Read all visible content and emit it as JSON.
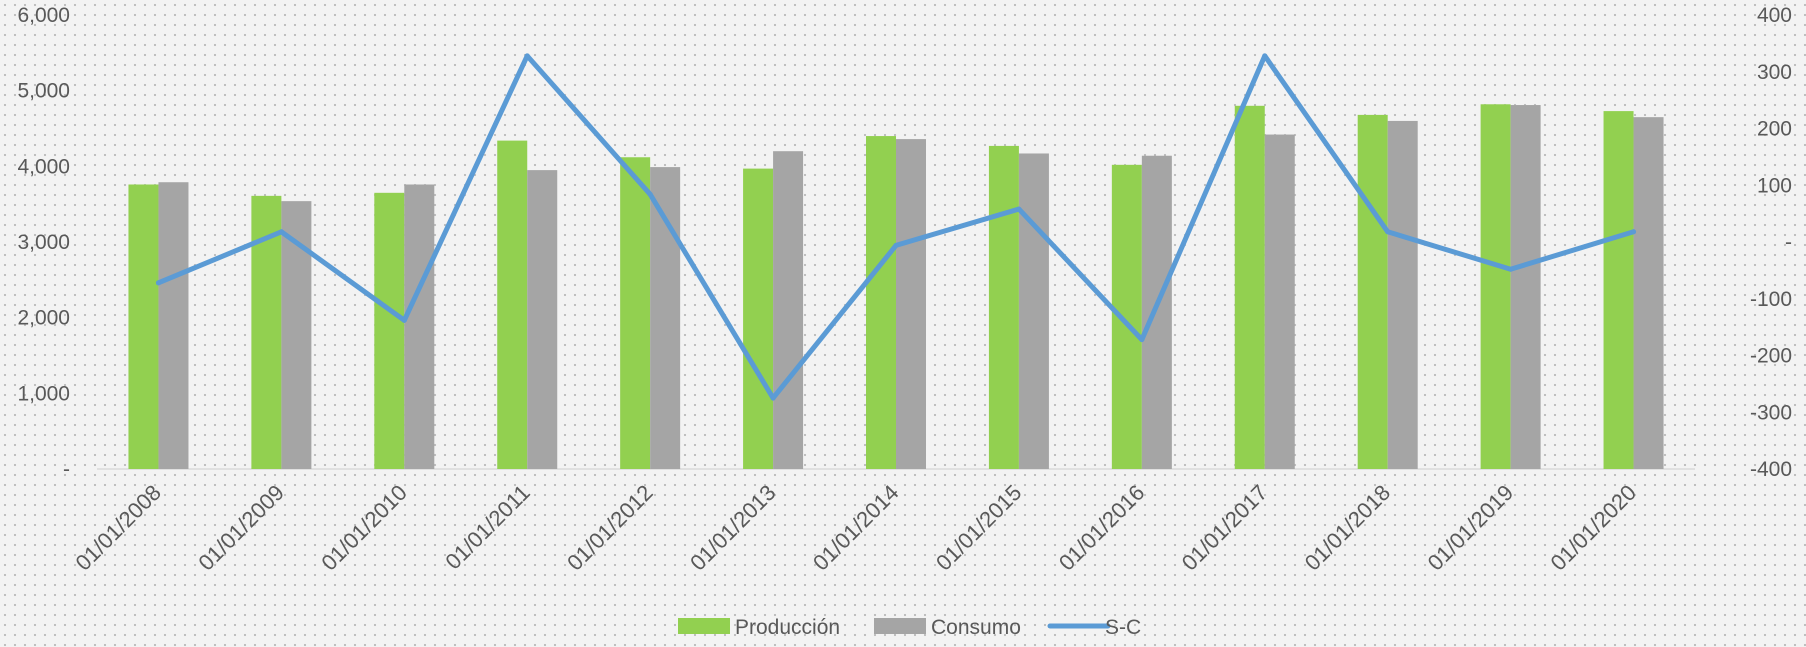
{
  "chart_data": {
    "type": "bar",
    "categories": [
      "01/01/2008",
      "01/01/2009",
      "01/01/2010",
      "01/01/2011",
      "01/01/2012",
      "01/01/2013",
      "01/01/2014",
      "01/01/2015",
      "01/01/2016",
      "01/01/2017",
      "01/01/2018",
      "01/01/2019",
      "01/01/2020"
    ],
    "series": [
      {
        "name": "Producción",
        "type": "bar",
        "axis": "left",
        "color": "#92d050",
        "values": [
          3760,
          3610,
          3650,
          4340,
          4120,
          3970,
          4400,
          4270,
          4020,
          4800,
          4680,
          4820,
          4730
        ]
      },
      {
        "name": "Consumo",
        "type": "bar",
        "axis": "left",
        "color": "#a5a5a5",
        "values": [
          3790,
          3540,
          3760,
          3950,
          3990,
          4200,
          4360,
          4170,
          4140,
          4420,
          4600,
          4810,
          4650
        ]
      },
      {
        "name": "S-C",
        "type": "line",
        "axis": "right",
        "color": "#5b9bd5",
        "values": [
          -72,
          18,
          -138,
          328,
          84,
          -275,
          -6,
          58,
          -172,
          328,
          18,
          -48,
          18
        ]
      }
    ],
    "ylim_left": [
      0,
      6000
    ],
    "ylim_right": [
      -400,
      400
    ],
    "yticks_left": [
      "-",
      "1,000",
      "2,000",
      "3,000",
      "4,000",
      "5,000",
      "6,000"
    ],
    "yticks_right": [
      "-400",
      "-300",
      "-200",
      "-100",
      "-",
      "100",
      "200",
      "300",
      "400"
    ],
    "grid": false,
    "legend_position": "bottom",
    "title": "",
    "xlabel": "",
    "ylabel": ""
  }
}
